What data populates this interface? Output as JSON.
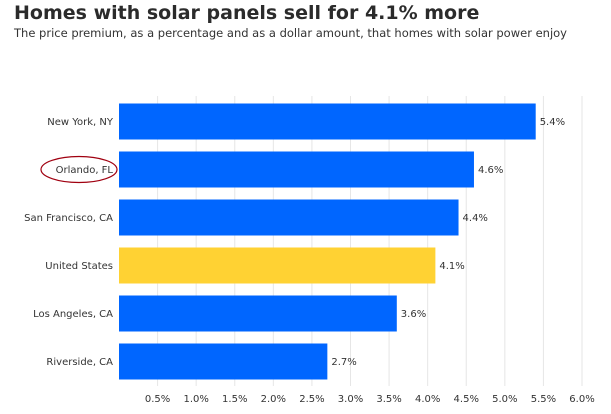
{
  "title": "Homes with solar panels sell for 4.1% more",
  "subtitle": "The price premium, as a percentage and as a dollar amount, that homes with solar power enjoy",
  "chart_data": {
    "type": "bar",
    "orientation": "horizontal",
    "categories": [
      "New York, NY",
      "Orlando, FL",
      "San Francisco, CA",
      "United States",
      "Los Angeles, CA",
      "Riverside, CA"
    ],
    "values": [
      5.4,
      4.6,
      4.4,
      4.1,
      3.6,
      2.7
    ],
    "value_labels": [
      "5.4%",
      "4.6%",
      "4.4%",
      "4.1%",
      "3.6%",
      "2.7%"
    ],
    "xlim": [
      0,
      6.0
    ],
    "x_ticks": [
      0.5,
      1.0,
      1.5,
      2.0,
      2.5,
      3.0,
      3.5,
      4.0,
      4.5,
      5.0,
      5.5,
      6.0
    ],
    "x_tick_labels": [
      "0.5%",
      "1.0%",
      "1.5%",
      "2.0%",
      "2.5%",
      "3.0%",
      "3.5%",
      "4.0%",
      "4.5%",
      "5.0%",
      "5.5%",
      "6.0%"
    ],
    "grid": true,
    "colors": {
      "default": "#0066ff",
      "highlight": "#ffd233",
      "annotation_ellipse": "#a00010",
      "grid": "#e6e6e6"
    },
    "highlighted_category": "United States",
    "annotated_category": "Orlando, FL"
  }
}
